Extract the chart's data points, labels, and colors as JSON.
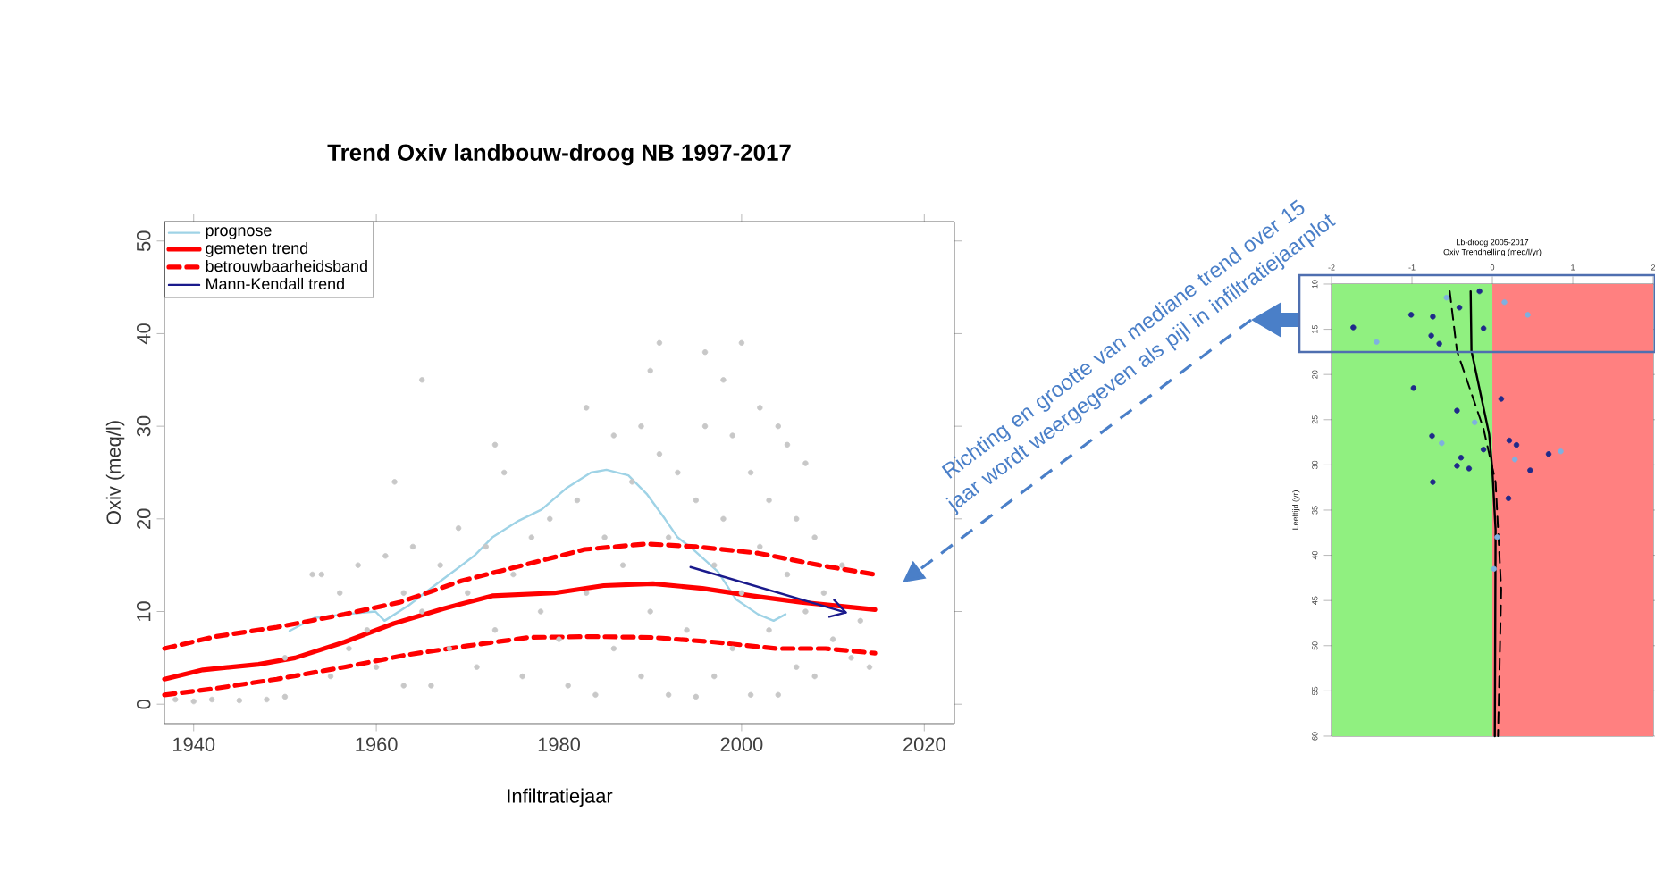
{
  "chart_data": [
    {
      "type": "scatter",
      "title": "Trend Oxiv landbouw-droog NB 1997-2017",
      "xlabel": "Infiltratiejaar",
      "ylabel": "Oxiv (meq/l)",
      "xlim": [
        1936.8,
        2023.3
      ],
      "ylim": [
        -2.1,
        52.1
      ],
      "xticks": [
        1940,
        1960,
        1980,
        2000,
        2020
      ],
      "yticks": [
        0,
        10,
        20,
        30,
        40,
        50
      ],
      "legend": "top left",
      "series": [
        {
          "type": "scatter",
          "marker": "circle",
          "color": "#c8c8c8",
          "x": [
            1938,
            1940,
            1942,
            1945,
            1948,
            1950,
            1950,
            1953,
            1954,
            1955,
            1956,
            1957,
            1958,
            1959,
            1960,
            1961,
            1962,
            1963,
            1963,
            1964,
            1965,
            1965,
            1966,
            1967,
            1968,
            1969,
            1970,
            1971,
            1972,
            1973,
            1973,
            1974,
            1975,
            1976,
            1977,
            1978,
            1979,
            1980,
            1981,
            1982,
            1983,
            1983,
            1984,
            1985,
            1986,
            1986,
            1987,
            1988,
            1989,
            1989,
            1990,
            1990,
            1991,
            1991,
            1992,
            1992,
            1993,
            1994,
            1995,
            1995,
            1996,
            1996,
            1997,
            1997,
            1998,
            1998,
            1999,
            1999,
            2000,
            2000,
            2001,
            2001,
            2002,
            2002,
            2003,
            2003,
            2004,
            2004,
            2005,
            2005,
            2006,
            2006,
            2007,
            2007,
            2008,
            2008,
            2009,
            2010,
            2011,
            2012,
            2013,
            2014
          ],
          "values": [
            0.5,
            0.3,
            0.5,
            0.4,
            0.5,
            0.8,
            5,
            14,
            14,
            3,
            12,
            6,
            15,
            8,
            4,
            16,
            24,
            2,
            12,
            17,
            35,
            10,
            2,
            15,
            6,
            19,
            12,
            4,
            17,
            28,
            8,
            25,
            14,
            3,
            18,
            10,
            20,
            7,
            2,
            22,
            32,
            12,
            1,
            18,
            29,
            6,
            15,
            24,
            30,
            3,
            36,
            10,
            39,
            27,
            18,
            1,
            25,
            8,
            22,
            0.8,
            38,
            30,
            15,
            3,
            35,
            20,
            29,
            6,
            12,
            39,
            25,
            1,
            17,
            32,
            8,
            22,
            1,
            30,
            28,
            14,
            4,
            20,
            26,
            10,
            18,
            3,
            12,
            7,
            15,
            5,
            9,
            4
          ]
        },
        {
          "name": "prognose",
          "type": "line",
          "color": "#9fd3e6",
          "line_style": "solid",
          "x": [
            1950.5,
            1953.2,
            1956.5,
            1959.9,
            1960.9,
            1963.6,
            1965.3,
            1968,
            1970.7,
            1972.7,
            1975.4,
            1978.1,
            1980.8,
            1983.5,
            1985.2,
            1987.6,
            1989.6,
            1991.6,
            1993,
            1994.7,
            1997.4,
            1999.4,
            2001.8,
            2003.5,
            2004.8
          ],
          "values": [
            7.9,
            9.3,
            9.7,
            10,
            9,
            10.7,
            12,
            14,
            16,
            18,
            19.7,
            21,
            23.3,
            25,
            25.3,
            24.7,
            22.7,
            20,
            18,
            16.7,
            14.3,
            11.3,
            9.7,
            9,
            9.7
          ]
        },
        {
          "name": "gemeten trend",
          "type": "line",
          "color": "#ff0000",
          "line_style": "solid",
          "x": [
            1936.8,
            1941,
            1947.1,
            1951.1,
            1956.5,
            1961.9,
            1967.3,
            1972.7,
            1979.5,
            1984.9,
            1990.3,
            1995.7,
            2001.1,
            2006.5,
            2014.6
          ],
          "values": [
            2.7,
            3.7,
            4.3,
            5,
            6.7,
            8.7,
            10.3,
            11.7,
            12,
            12.8,
            13,
            12.5,
            11.7,
            11,
            10.2
          ]
        },
        {
          "name": "betrouwbaarheidsband",
          "type": "line",
          "color": "#ff0000",
          "line_style": "dashed",
          "x": [
            1936.8,
            1942.4,
            1949.1,
            1956.5,
            1962.6,
            1969.3,
            1976.1,
            1982.8,
            1989.6,
            1995,
            2001.8,
            2008.5,
            2014.6
          ],
          "values": [
            6,
            7.3,
            8.3,
            9.7,
            11,
            13.3,
            15,
            16.7,
            17.3,
            17,
            16.3,
            15,
            14
          ]
        },
        {
          "type": "line",
          "color": "#ff0000",
          "line_style": "dashed",
          "x": [
            1936.8,
            1942.4,
            1949.1,
            1956.5,
            1963.2,
            1970,
            1976.7,
            1983.5,
            1990.3,
            1997,
            2003.8,
            2009.2,
            2014.6
          ],
          "values": [
            1,
            1.7,
            2.7,
            4,
            5.3,
            6.3,
            7.2,
            7.3,
            7.2,
            6.7,
            6,
            6,
            5.5
          ]
        },
        {
          "name": "Mann-Kendall trend",
          "type": "line",
          "color": "#1a1a8c",
          "line_style": "solid",
          "x": [
            1994.4,
            2011.4
          ],
          "values": [
            14.8,
            9.9
          ]
        }
      ],
      "annotations": [
        "Richting en grootte van mediane trend over 15 jaar wordt weergegeven als pijl in infiltratiejaarplot"
      ]
    },
    {
      "type": "scatter",
      "title": "Lb-droog 2005-2017",
      "subtitle": "Oxiv Trendhelling (meq/l/yr)",
      "ylabel": "Leeftijd (yr)",
      "xlim": [
        -2,
        2
      ],
      "ylim": [
        60,
        10
      ],
      "xticks": [
        -2,
        -1,
        0,
        1,
        2
      ],
      "yticks": [
        10,
        15,
        20,
        25,
        30,
        35,
        40,
        45,
        50,
        55,
        60
      ],
      "bands": [
        {
          "axis": "x",
          "from": -2,
          "to": 0,
          "color": "#90f080"
        },
        {
          "axis": "x",
          "from": 0,
          "to": 2,
          "color": "#ff8080"
        }
      ],
      "series": [
        {
          "type": "scatter",
          "marker": "circle",
          "color": "#1f2a8a",
          "x": [
            -1.73,
            -1.01,
            -0.74,
            -0.76,
            -0.66,
            -0.41,
            -0.11,
            -0.16,
            -0.98,
            -0.75,
            -0.39,
            -0.44,
            -0.29,
            -0.74,
            -0.11,
            0.21,
            0.3,
            0.47,
            0.7,
            0.2,
            0.11,
            -0.44
          ],
          "values": [
            14.8,
            13.4,
            13.6,
            15.7,
            16.6,
            12.6,
            14.9,
            10.8,
            21.5,
            26.8,
            29.2,
            30.1,
            30.4,
            31.9,
            28.3,
            27.3,
            27.8,
            30.6,
            28.8,
            33.7,
            22.7,
            24
          ]
        },
        {
          "type": "scatter",
          "marker": "circle",
          "color": "#7fb0e0",
          "x": [
            -0.57,
            0.15,
            0.44,
            0.85,
            0.28,
            -1.44,
            -0.63,
            -0.22,
            0.06,
            0.02
          ],
          "values": [
            11.5,
            12,
            13.4,
            28.5,
            29.4,
            16.4,
            27.6,
            25.3,
            38,
            41.5
          ]
        },
        {
          "type": "line",
          "color": "#000000",
          "line_style": "solid",
          "x": [
            -0.27,
            -0.26,
            -0.04,
            0,
            0.04,
            0.03
          ],
          "values": [
            10.8,
            17.4,
            26.6,
            30.6,
            37.2,
            60
          ]
        },
        {
          "type": "line",
          "color": "#000000",
          "line_style": "dashed",
          "x": [
            -0.53,
            -0.44,
            -0.11,
            0.04,
            0.11,
            0.07
          ],
          "values": [
            10.8,
            17.4,
            26,
            31.9,
            43.8,
            60
          ]
        }
      ]
    }
  ]
}
